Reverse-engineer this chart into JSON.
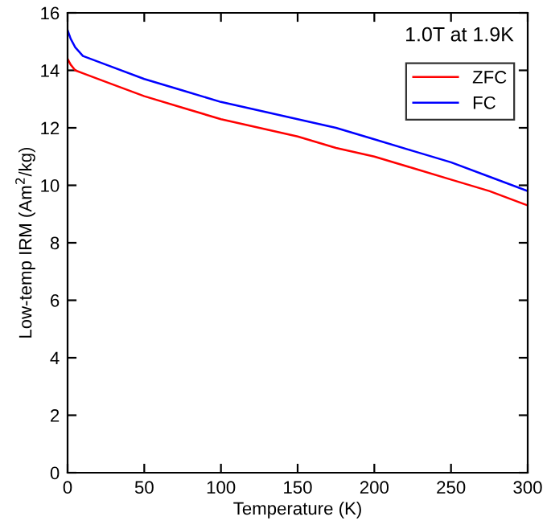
{
  "chart_data": {
    "type": "line",
    "xlabel": "Temperature (K)",
    "ylabel": "Low-temp IRM (Am$^{2}$/kg)",
    "annotations": [
      "1.0T at 1.9K"
    ],
    "x": [
      0,
      2,
      5,
      10,
      25,
      50,
      75,
      100,
      125,
      150,
      175,
      200,
      225,
      250,
      275,
      300
    ],
    "series": [
      {
        "name": "ZFC",
        "color": "#ff0000",
        "values": [
          14.4,
          14.2,
          14.0,
          13.9,
          13.6,
          13.1,
          12.7,
          12.3,
          12.0,
          11.7,
          11.3,
          11.0,
          10.6,
          10.2,
          9.8,
          9.3
        ]
      },
      {
        "name": "FC",
        "color": "#0000ff",
        "values": [
          15.4,
          15.1,
          14.8,
          14.5,
          14.2,
          13.7,
          13.3,
          12.9,
          12.6,
          12.3,
          12.0,
          11.6,
          11.2,
          10.8,
          10.3,
          9.8
        ]
      }
    ],
    "xlim": [
      0,
      300
    ],
    "xticks": [
      0,
      50,
      100,
      150,
      200,
      250,
      300
    ],
    "ylim": [
      0,
      16
    ],
    "yticks": [
      0,
      2,
      4,
      6,
      8,
      10,
      12,
      14,
      16
    ],
    "grid": false,
    "legend": "top right",
    "marker": "none",
    "line_style": "solid"
  }
}
